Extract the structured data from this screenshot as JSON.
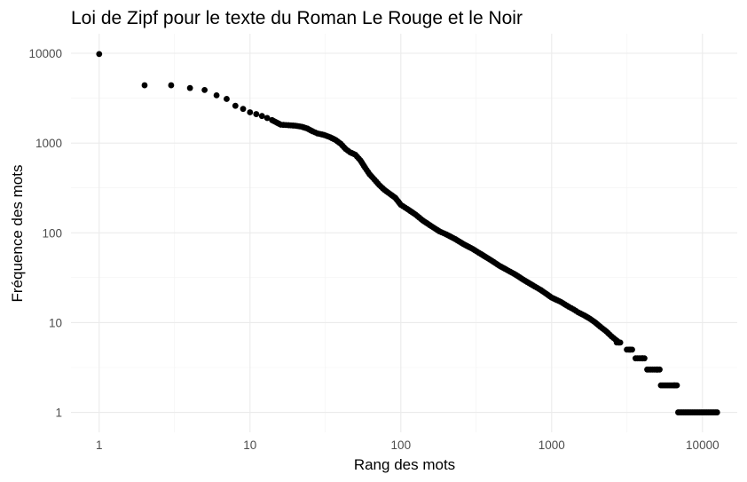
{
  "chart_data": {
    "type": "scatter",
    "title": "Loi de Zipf pour le texte du Roman Le Rouge et le Noir",
    "xlabel": "Rang des mots",
    "ylabel": "Fréquence des mots",
    "x_scale": "log10",
    "y_scale": "log10",
    "xlim": [
      0.65,
      17000
    ],
    "ylim": [
      0.6,
      16500
    ],
    "x_ticks": [
      1,
      10,
      100,
      1000,
      10000
    ],
    "x_tick_labels": [
      "1",
      "10",
      "100",
      "1000",
      "10000"
    ],
    "y_ticks": [
      1,
      10,
      100,
      1000,
      10000
    ],
    "y_tick_labels": [
      "1",
      "10",
      "100",
      "1000",
      "10000"
    ],
    "grid": true,
    "legend": "none",
    "point_color": "#000000",
    "series": [
      {
        "points": [
          [
            1,
            9800
          ],
          [
            2,
            4400
          ],
          [
            3,
            4400
          ],
          [
            4,
            4100
          ],
          [
            5,
            3900
          ],
          [
            6,
            3400
          ],
          [
            7,
            3100
          ],
          [
            8,
            2600
          ],
          [
            9,
            2400
          ],
          [
            10,
            2200
          ],
          [
            11,
            2100
          ],
          [
            12,
            2000
          ],
          [
            13,
            1900
          ],
          [
            14,
            1800
          ],
          [
            16,
            1600
          ],
          [
            18,
            1580
          ],
          [
            20,
            1560
          ],
          [
            22,
            1520
          ],
          [
            24,
            1450
          ],
          [
            26,
            1350
          ],
          [
            28,
            1280
          ],
          [
            31,
            1230
          ],
          [
            34,
            1160
          ],
          [
            37,
            1080
          ],
          [
            40,
            980
          ],
          [
            43,
            860
          ],
          [
            46,
            790
          ],
          [
            50,
            740
          ],
          [
            54,
            640
          ],
          [
            58,
            530
          ],
          [
            62,
            450
          ],
          [
            67,
            390
          ],
          [
            72,
            340
          ],
          [
            78,
            300
          ],
          [
            85,
            270
          ],
          [
            92,
            245
          ],
          [
            100,
            205
          ],
          [
            110,
            185
          ],
          [
            125,
            160
          ],
          [
            140,
            137
          ],
          [
            160,
            118
          ],
          [
            180,
            104
          ],
          [
            200,
            96
          ],
          [
            230,
            85
          ],
          [
            260,
            75
          ],
          [
            300,
            66
          ],
          [
            340,
            58
          ],
          [
            400,
            49
          ],
          [
            450,
            43
          ],
          [
            500,
            39
          ],
          [
            580,
            34
          ],
          [
            650,
            30
          ],
          [
            750,
            26
          ],
          [
            850,
            23
          ],
          [
            1000,
            19
          ],
          [
            1150,
            17
          ],
          [
            1300,
            15
          ],
          [
            1400,
            14
          ],
          [
            1500,
            13
          ],
          [
            1650,
            12
          ],
          [
            1800,
            11
          ],
          [
            1950,
            10
          ],
          [
            2100,
            9
          ],
          [
            2300,
            8
          ],
          [
            2500,
            7
          ],
          [
            2800,
            6
          ],
          [
            3300,
            5
          ],
          [
            4000,
            4
          ],
          [
            5000,
            3
          ],
          [
            6500,
            2
          ],
          [
            12500,
            1
          ]
        ],
        "runs": [
          {
            "y": 6,
            "x": [
              2700,
              2900
            ]
          },
          {
            "y": 5,
            "x": [
              3150,
              3450
            ]
          },
          {
            "y": 4,
            "x": [
              3600,
              4200
            ]
          },
          {
            "y": 3,
            "x": [
              4300,
              5250
            ]
          },
          {
            "y": 2,
            "x": [
              5300,
              6800
            ]
          },
          {
            "y": 1,
            "x": [
              6900,
              12500
            ]
          }
        ]
      }
    ]
  }
}
